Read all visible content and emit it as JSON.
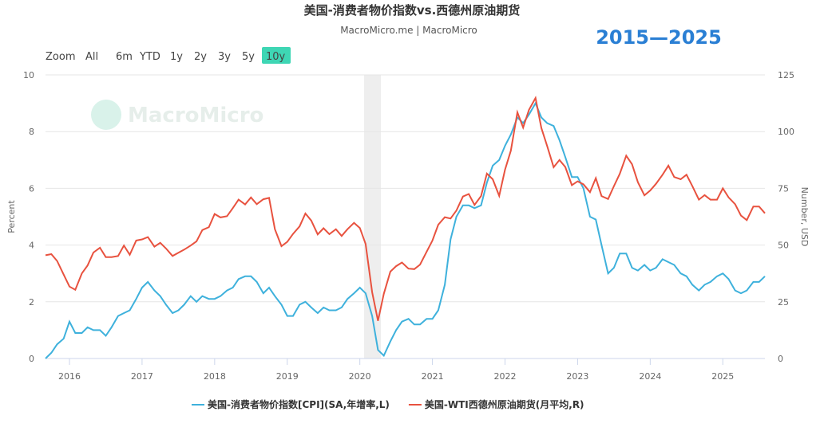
{
  "chart_data": {
    "type": "line",
    "title": "美国-消费者物价指数vs.西德州原油期货",
    "subtitle": "MacroMicro.me | MacroMicro",
    "annotation": "2015—2025",
    "watermark": "MacroMicro",
    "zoom_label": "Zoom",
    "range_buttons": [
      "All",
      "6m",
      "YTD",
      "1y",
      "2y",
      "3y",
      "5y",
      "10y"
    ],
    "active_range": "10y",
    "ylabel": "Percent",
    "y2label": "Number, USD",
    "x": [
      2015.67,
      2015.75,
      2015.83,
      2015.92,
      2016.0,
      2016.08,
      2016.17,
      2016.25,
      2016.33,
      2016.42,
      2016.5,
      2016.58,
      2016.67,
      2016.75,
      2016.83,
      2016.92,
      2017.0,
      2017.08,
      2017.17,
      2017.25,
      2017.33,
      2017.42,
      2017.5,
      2017.58,
      2017.67,
      2017.75,
      2017.83,
      2017.92,
      2018.0,
      2018.08,
      2018.17,
      2018.25,
      2018.33,
      2018.42,
      2018.5,
      2018.58,
      2018.67,
      2018.75,
      2018.83,
      2018.92,
      2019.0,
      2019.08,
      2019.17,
      2019.25,
      2019.33,
      2019.42,
      2019.5,
      2019.58,
      2019.67,
      2019.75,
      2019.83,
      2019.92,
      2020.0,
      2020.08,
      2020.17,
      2020.25,
      2020.33,
      2020.42,
      2020.5,
      2020.58,
      2020.67,
      2020.75,
      2020.83,
      2020.92,
      2021.0,
      2021.08,
      2021.17,
      2021.25,
      2021.33,
      2021.42,
      2021.5,
      2021.58,
      2021.67,
      2021.75,
      2021.83,
      2021.92,
      2022.0,
      2022.08,
      2022.17,
      2022.25,
      2022.33,
      2022.42,
      2022.5,
      2022.58,
      2022.67,
      2022.75,
      2022.83,
      2022.92,
      2023.0,
      2023.08,
      2023.17,
      2023.25,
      2023.33,
      2023.42,
      2023.5,
      2023.58,
      2023.67,
      2023.75,
      2023.83,
      2023.92,
      2024.0,
      2024.08,
      2024.17,
      2024.25,
      2024.33,
      2024.42,
      2024.5,
      2024.58,
      2024.67,
      2024.75,
      2024.83,
      2024.92,
      2025.0,
      2025.08,
      2025.17,
      2025.25,
      2025.33,
      2025.42,
      2025.5,
      2025.58
    ],
    "series": [
      {
        "name": "美国-消费者物价指数[CPI](SA,年增率,L)",
        "color": "#3eb1dc",
        "axis": "y",
        "values": [
          0.0,
          0.2,
          0.5,
          0.7,
          1.3,
          0.9,
          0.9,
          1.1,
          1.0,
          1.0,
          0.8,
          1.1,
          1.5,
          1.6,
          1.7,
          2.1,
          2.5,
          2.7,
          2.4,
          2.2,
          1.9,
          1.6,
          1.7,
          1.9,
          2.2,
          2.0,
          2.2,
          2.1,
          2.1,
          2.2,
          2.4,
          2.5,
          2.8,
          2.9,
          2.9,
          2.7,
          2.3,
          2.5,
          2.2,
          1.9,
          1.5,
          1.5,
          1.9,
          2.0,
          1.8,
          1.6,
          1.8,
          1.7,
          1.7,
          1.8,
          2.1,
          2.3,
          2.5,
          2.3,
          1.5,
          0.3,
          0.1,
          0.6,
          1.0,
          1.3,
          1.4,
          1.2,
          1.2,
          1.4,
          1.4,
          1.7,
          2.6,
          4.2,
          5.0,
          5.4,
          5.4,
          5.3,
          5.4,
          6.2,
          6.8,
          7.0,
          7.5,
          7.9,
          8.5,
          8.3,
          8.6,
          9.0,
          8.5,
          8.3,
          8.2,
          7.7,
          7.1,
          6.4,
          6.4,
          6.0,
          5.0,
          4.9,
          4.0,
          3.0,
          3.2,
          3.7,
          3.7,
          3.2,
          3.1,
          3.3,
          3.1,
          3.2,
          3.5,
          3.4,
          3.3,
          3.0,
          2.9,
          2.6,
          2.4,
          2.6,
          2.7,
          2.9,
          3.0,
          2.8,
          2.4,
          2.3,
          2.4,
          2.7,
          2.7,
          2.9
        ]
      },
      {
        "name": "美国-WTI西德州原油期货(月平均,R)",
        "color": "#e8523f",
        "axis": "y2",
        "values": [
          45.5,
          46,
          43,
          37,
          31.7,
          30.3,
          37.5,
          41,
          46.7,
          48.8,
          44.7,
          44.7,
          45.2,
          49.8,
          45.7,
          52,
          52.5,
          53.5,
          49.3,
          51,
          48.5,
          45.2,
          46.6,
          48,
          49.8,
          51.6,
          56.6,
          57.9,
          63.7,
          62.2,
          62.7,
          66.3,
          70,
          67.9,
          71,
          68,
          70.2,
          70.8,
          57,
          49.5,
          51.4,
          54.9,
          58.2,
          63.9,
          60.8,
          54.7,
          57.4,
          54.8,
          57,
          54,
          57,
          59.8,
          57.5,
          50.5,
          29.2,
          16.6,
          28.5,
          38.3,
          40.7,
          42.3,
          39.6,
          39.4,
          41.4,
          47,
          52,
          59,
          62.3,
          61.7,
          65.2,
          71.4,
          72.5,
          67.7,
          71.6,
          81.5,
          79,
          71.7,
          83.2,
          91.6,
          108.5,
          101.8,
          109.6,
          114.8,
          101.6,
          93.7,
          84.3,
          87.5,
          84.4,
          76.4,
          78.1,
          76.8,
          73.3,
          79.5,
          71.6,
          70.3,
          76,
          81.4,
          89.4,
          85.6,
          77.7,
          71.9,
          74,
          77,
          81,
          85,
          80,
          79,
          81,
          76,
          70,
          72,
          70,
          70,
          75,
          71,
          68,
          63,
          61,
          67,
          67,
          64
        ]
      }
    ],
    "xlim": [
      2015.67,
      2025.58
    ],
    "xticks": [
      2016,
      2017,
      2018,
      2019,
      2020,
      2021,
      2022,
      2023,
      2024,
      2025
    ],
    "ylim": [
      0,
      10
    ],
    "yticks": [
      0,
      2,
      4,
      6,
      8,
      10
    ],
    "y2lim": [
      0,
      125
    ],
    "y2ticks": [
      0,
      25,
      50,
      75,
      100,
      125
    ],
    "grid": true
  }
}
